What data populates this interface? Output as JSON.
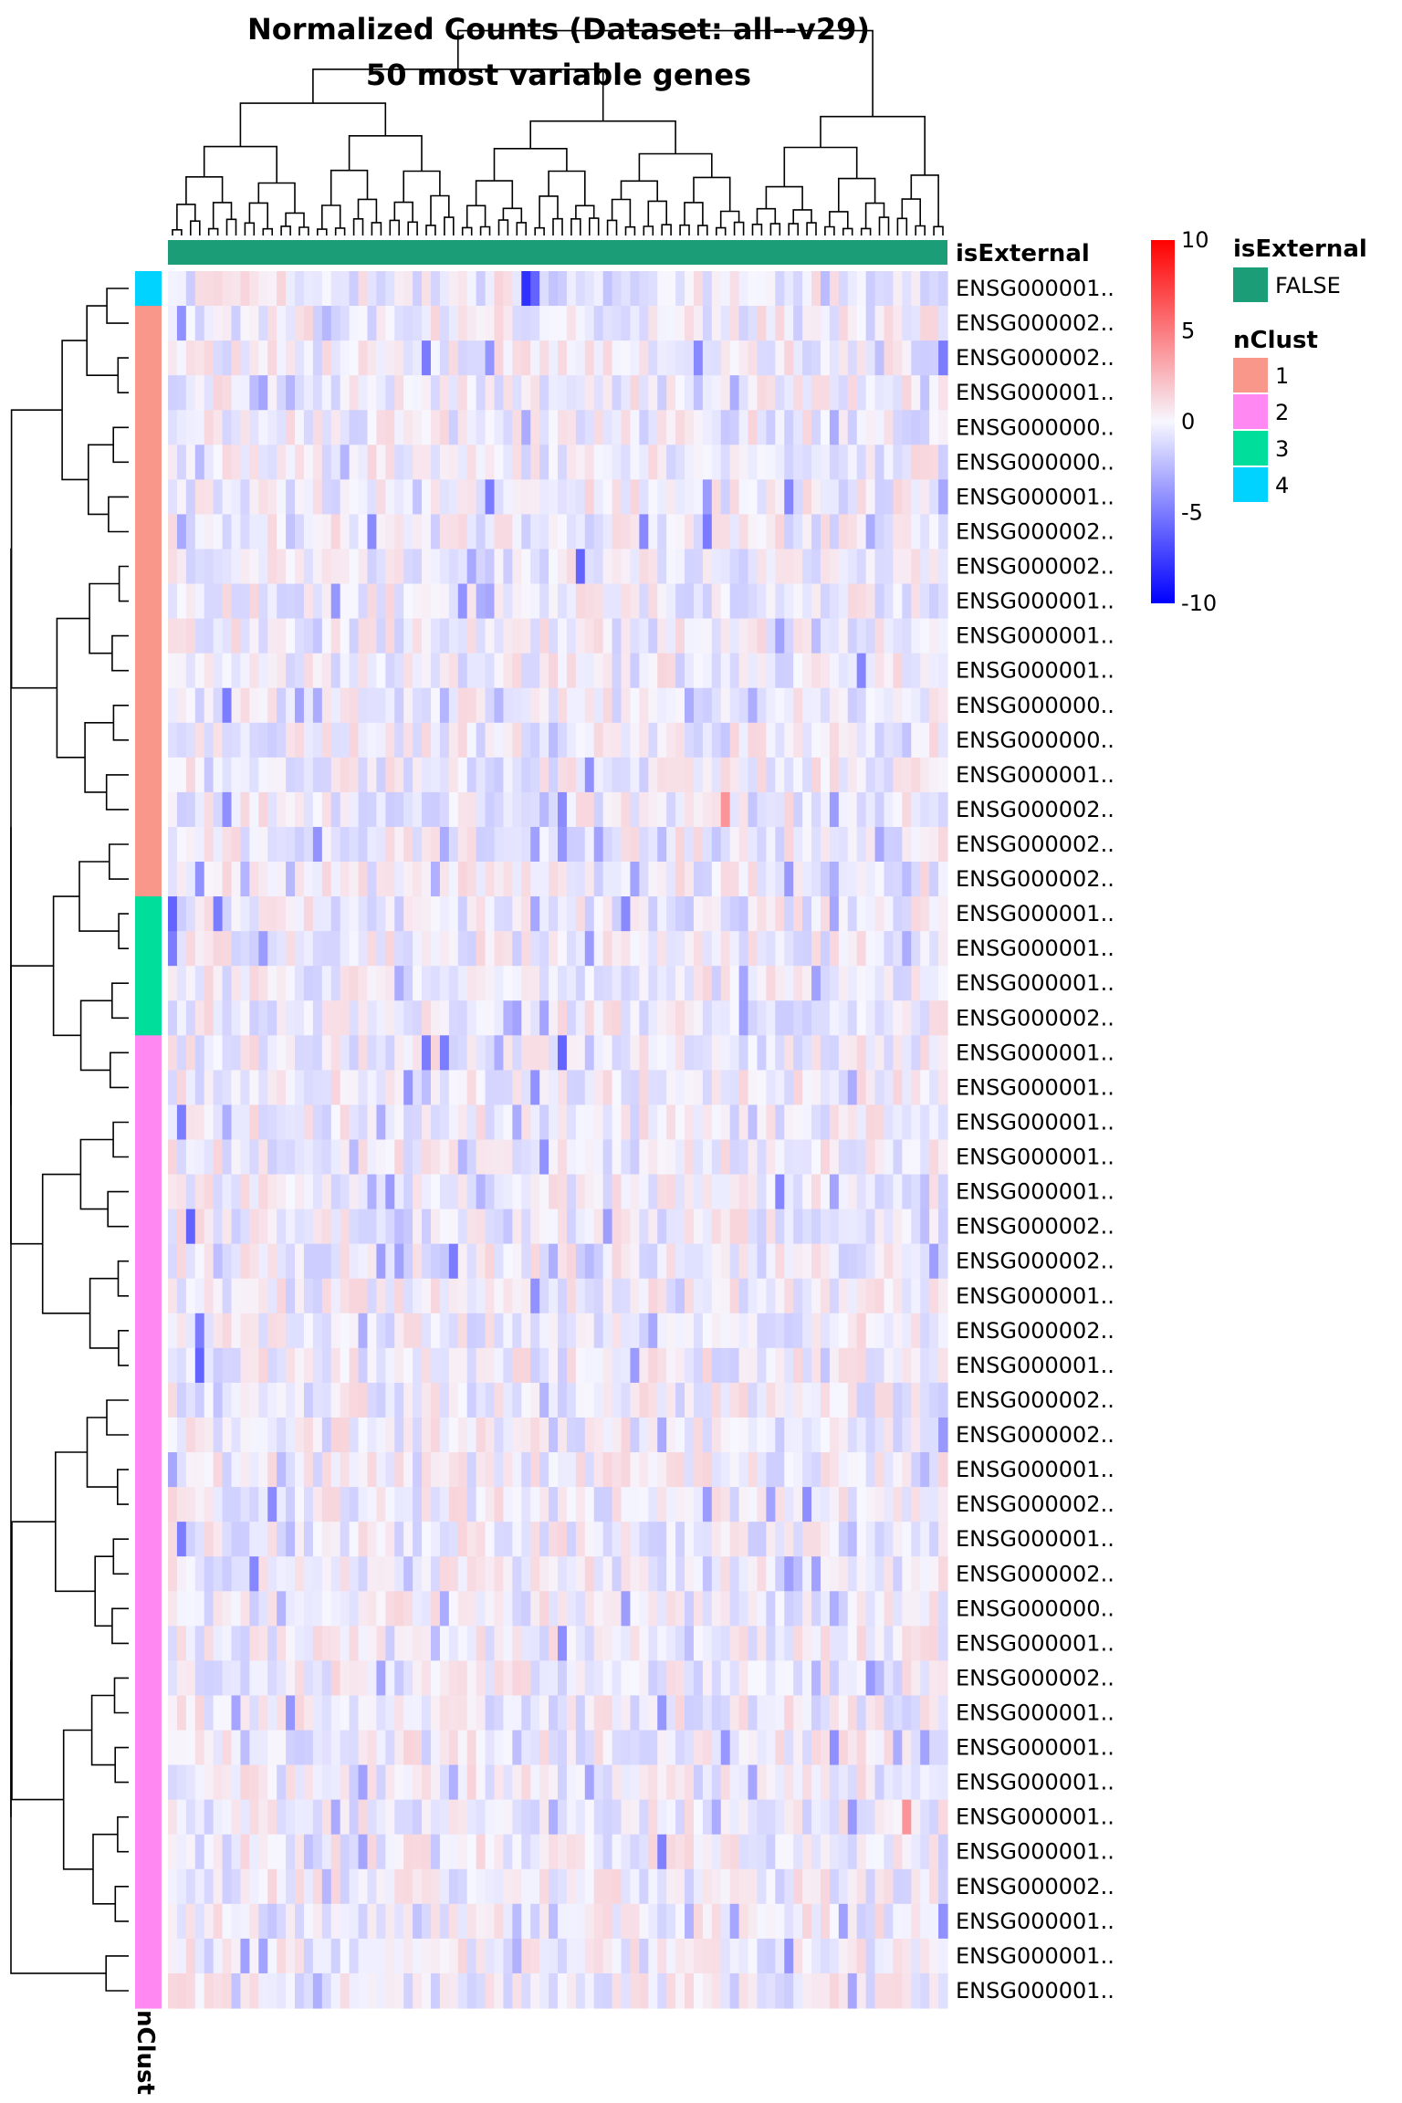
{
  "chart_data": {
    "type": "heatmap",
    "title": "Normalized Counts (Dataset: all--v29)",
    "subtitle": "50 most variable genes",
    "n_columns": 86,
    "column_annotation": {
      "name": "isExternal",
      "legend_title": "isExternal",
      "levels": [
        {
          "label": "FALSE",
          "color": "#1B9E77"
        }
      ]
    },
    "row_annotation": {
      "name": "nClust",
      "legend_title": "nClust",
      "levels": [
        {
          "label": "1",
          "color": "#F8978A"
        },
        {
          "label": "2",
          "color": "#FF88F2"
        },
        {
          "label": "3",
          "color": "#00DE9B"
        },
        {
          "label": "4",
          "color": "#00D3FF"
        }
      ],
      "row_clusters": [
        "4",
        "1",
        "1",
        "1",
        "1",
        "1",
        "1",
        "1",
        "1",
        "1",
        "1",
        "1",
        "1",
        "1",
        "1",
        "1",
        "1",
        "1",
        "3",
        "3",
        "3",
        "3",
        "2",
        "2",
        "2",
        "2",
        "2",
        "2",
        "2",
        "2",
        "2",
        "2",
        "2",
        "2",
        "2",
        "2",
        "2",
        "2",
        "2",
        "2",
        "2",
        "2",
        "2",
        "2",
        "2",
        "2",
        "2",
        "2",
        "2",
        "2"
      ]
    },
    "row_labels": [
      "ENSG000001..",
      "ENSG000002..",
      "ENSG000002..",
      "ENSG000001..",
      "ENSG000000..",
      "ENSG000000..",
      "ENSG000001..",
      "ENSG000002..",
      "ENSG000002..",
      "ENSG000001..",
      "ENSG000001..",
      "ENSG000001..",
      "ENSG000000..",
      "ENSG000000..",
      "ENSG000001..",
      "ENSG000002..",
      "ENSG000002..",
      "ENSG000002..",
      "ENSG000001..",
      "ENSG000001..",
      "ENSG000001..",
      "ENSG000002..",
      "ENSG000001..",
      "ENSG000001..",
      "ENSG000001..",
      "ENSG000001..",
      "ENSG000001..",
      "ENSG000002..",
      "ENSG000002..",
      "ENSG000001..",
      "ENSG000002..",
      "ENSG000001..",
      "ENSG000002..",
      "ENSG000002..",
      "ENSG000001..",
      "ENSG000002..",
      "ENSG000001..",
      "ENSG000002..",
      "ENSG000000..",
      "ENSG000001..",
      "ENSG000002..",
      "ENSG000001..",
      "ENSG000001..",
      "ENSG000001..",
      "ENSG000001..",
      "ENSG000001..",
      "ENSG000002..",
      "ENSG000001..",
      "ENSG000001..",
      "ENSG000001.."
    ],
    "color_scale": {
      "min": -10,
      "mid": 0,
      "max": 10,
      "low_color": "#0000FF",
      "mid_color": "#F7F7FF",
      "high_color": "#FF0000",
      "ticks": [
        "10",
        "5",
        "0",
        "-5",
        "-10"
      ],
      "tick_values": [
        10,
        5,
        0,
        -5,
        -10
      ]
    },
    "notable_values": [
      {
        "row": 0,
        "col": 39,
        "value": -8
      },
      {
        "row": 0,
        "col": 40,
        "value": -6
      },
      {
        "row": 8,
        "col": 45,
        "value": -6
      },
      {
        "row": 12,
        "col": 6,
        "value": -5
      },
      {
        "row": 18,
        "col": 0,
        "value": -6
      },
      {
        "row": 18,
        "col": 5,
        "value": -5
      },
      {
        "row": 19,
        "col": 0,
        "value": -5
      },
      {
        "row": 2,
        "col": 85,
        "value": -5
      },
      {
        "row": 22,
        "col": 28,
        "value": -5
      },
      {
        "row": 22,
        "col": 30,
        "value": -5
      },
      {
        "row": 22,
        "col": 43,
        "value": -6
      },
      {
        "row": 24,
        "col": 1,
        "value": -5
      },
      {
        "row": 27,
        "col": 2,
        "value": -6
      },
      {
        "row": 28,
        "col": 31,
        "value": -5
      },
      {
        "row": 30,
        "col": 3,
        "value": -5
      },
      {
        "row": 31,
        "col": 3,
        "value": -6
      },
      {
        "row": 36,
        "col": 1,
        "value": -5
      },
      {
        "row": 44,
        "col": 81,
        "value": 4
      },
      {
        "row": 15,
        "col": 61,
        "value": 4
      }
    ],
    "legend_placement": "right",
    "row_dendrogram": true,
    "column_dendrogram": true
  }
}
